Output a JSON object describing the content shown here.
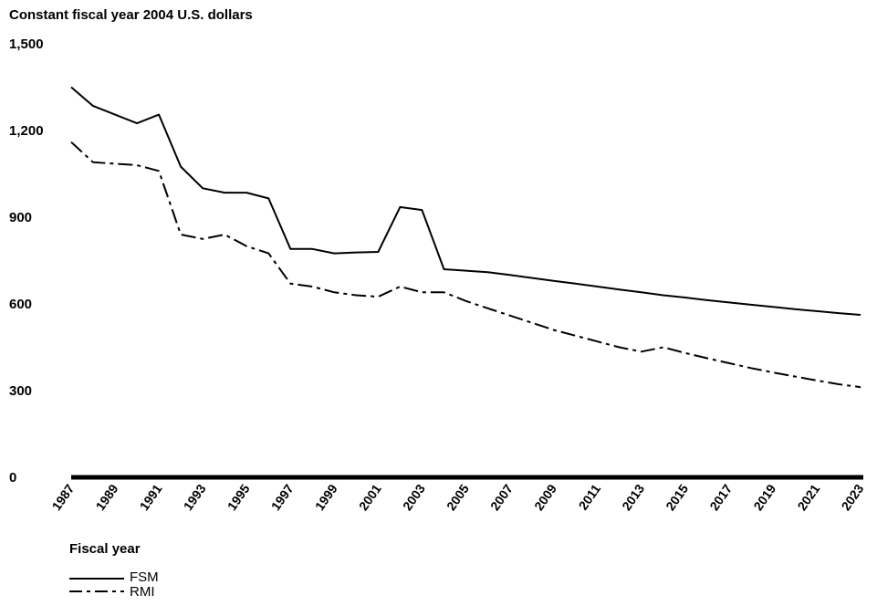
{
  "chart_data": {
    "type": "line",
    "title": "",
    "ylabel": "Constant fiscal year 2004 U.S. dollars",
    "xlabel": "Fiscal year",
    "ylim": [
      0,
      1500
    ],
    "yticks": [
      0,
      300,
      600,
      900,
      1200,
      1500
    ],
    "ytick_labels": [
      "0",
      "300",
      "600",
      "900",
      "1,200",
      "1,500"
    ],
    "xlim": [
      1987,
      2023
    ],
    "xticks": [
      1987,
      1989,
      1991,
      1993,
      1995,
      1997,
      1999,
      2001,
      2003,
      2005,
      2007,
      2009,
      2011,
      2013,
      2015,
      2017,
      2019,
      2021,
      2023
    ],
    "xtick_labels": [
      "1987",
      "1989",
      "1991",
      "1993",
      "1995",
      "1997",
      "1999",
      "2001",
      "2003",
      "2005",
      "2007",
      "2009",
      "2011",
      "2013",
      "2015",
      "2017",
      "2019",
      "2021",
      "2023"
    ],
    "grid": false,
    "legend_position": "bottom-left",
    "series": [
      {
        "name": "FSM",
        "style": "solid",
        "x": [
          1987,
          1988,
          1989,
          1990,
          1991,
          1992,
          1993,
          1994,
          1995,
          1996,
          1997,
          1998,
          1999,
          2000,
          2001,
          2002,
          2003,
          2004,
          2005,
          2006,
          2007,
          2008,
          2009,
          2010,
          2011,
          2012,
          2013,
          2014,
          2015,
          2016,
          2017,
          2018,
          2019,
          2020,
          2021,
          2022,
          2023
        ],
        "values": [
          1350,
          1285,
          1255,
          1225,
          1255,
          1075,
          1000,
          985,
          985,
          965,
          790,
          790,
          775,
          778,
          780,
          935,
          925,
          720,
          715,
          710,
          700,
          690,
          680,
          670,
          660,
          650,
          640,
          630,
          622,
          613,
          605,
          597,
          590,
          582,
          575,
          568,
          562
        ]
      },
      {
        "name": "RMI",
        "style": "dash-dot",
        "x": [
          1987,
          1988,
          1989,
          1990,
          1991,
          1992,
          1993,
          1994,
          1995,
          1996,
          1997,
          1998,
          1999,
          2000,
          2001,
          2002,
          2003,
          2004,
          2005,
          2006,
          2007,
          2008,
          2009,
          2010,
          2011,
          2012,
          2013,
          2014,
          2015,
          2016,
          2017,
          2018,
          2019,
          2020,
          2021,
          2022,
          2023
        ],
        "values": [
          1160,
          1090,
          1085,
          1080,
          1060,
          840,
          825,
          840,
          800,
          775,
          670,
          660,
          640,
          630,
          625,
          660,
          640,
          640,
          610,
          585,
          560,
          535,
          510,
          490,
          470,
          450,
          435,
          450,
          430,
          412,
          395,
          378,
          363,
          349,
          335,
          322,
          312
        ]
      }
    ]
  }
}
